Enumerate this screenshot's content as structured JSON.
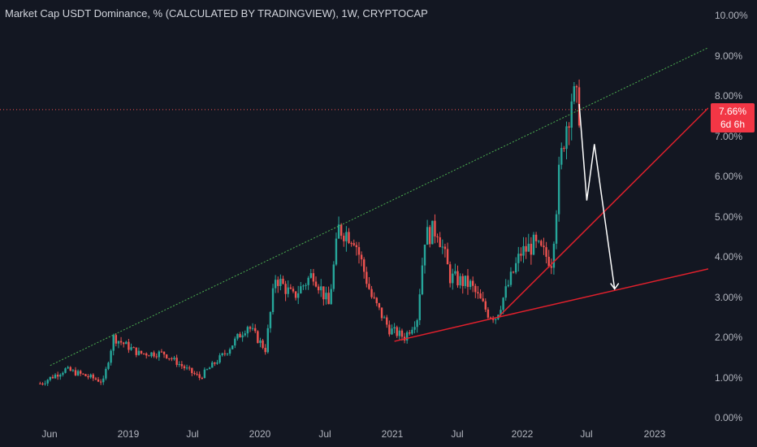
{
  "title": "Market Cap USDT Dominance, % (CALCULATED BY TRADINGVIEW), 1W, CRYPTOCAP",
  "last_value": "7.66%",
  "countdown": "6d 6h",
  "colors": {
    "up": "#26a69a",
    "down": "#ef5350",
    "background": "#131722",
    "upper_trendline": "#4caf50",
    "lower_trendline": "#e0202c",
    "projection": "#ffffff",
    "last_price_line": "#ef5350"
  },
  "chart_data": {
    "type": "candlestick",
    "title": "Market Cap USDT Dominance, % (CALCULATED BY TRADINGVIEW), 1W, CRYPTOCAP",
    "ylim": [
      0,
      10
    ],
    "y_unit": "%",
    "y_ticks": [
      "10.00%",
      "9.00%",
      "8.00%",
      "7.00%",
      "6.00%",
      "5.00%",
      "4.00%",
      "3.00%",
      "2.00%",
      "1.00%",
      "0.00%"
    ],
    "x_ticks": [
      "Jun",
      "2019",
      "Jul",
      "2020",
      "Jul",
      "2021",
      "Jul",
      "2022",
      "Jul",
      "2023"
    ],
    "x_range": [
      "2018-05-14",
      "2023-06-26"
    ],
    "grid": false,
    "last_value": 7.66,
    "key_points": [
      {
        "x": "2018-06-04",
        "y": 0.85
      },
      {
        "x": "2018-08-13",
        "y": 1.2
      },
      {
        "x": "2018-11-26",
        "y": 0.9
      },
      {
        "x": "2018-12-24",
        "y": 2.0
      },
      {
        "x": "2019-03-04",
        "y": 1.6
      },
      {
        "x": "2019-05-13",
        "y": 1.6
      },
      {
        "x": "2019-07-15",
        "y": 1.2
      },
      {
        "x": "2019-08-19",
        "y": 1.0
      },
      {
        "x": "2019-10-28",
        "y": 1.6
      },
      {
        "x": "2019-12-30",
        "y": 2.3
      },
      {
        "x": "2020-02-17",
        "y": 1.7
      },
      {
        "x": "2020-03-16",
        "y": 3.5
      },
      {
        "x": "2020-05-04",
        "y": 3.0
      },
      {
        "x": "2020-06-29",
        "y": 3.6
      },
      {
        "x": "2020-08-10",
        "y": 2.8
      },
      {
        "x": "2020-09-07",
        "y": 4.7
      },
      {
        "x": "2020-10-19",
        "y": 4.5
      },
      {
        "x": "2020-12-07",
        "y": 3.0
      },
      {
        "x": "2021-01-25",
        "y": 2.2
      },
      {
        "x": "2021-03-08",
        "y": 2.0
      },
      {
        "x": "2021-04-12",
        "y": 2.5
      },
      {
        "x": "2021-05-03",
        "y": 4.5
      },
      {
        "x": "2021-06-07",
        "y": 4.7
      },
      {
        "x": "2021-07-12",
        "y": 3.5
      },
      {
        "x": "2021-09-06",
        "y": 3.3
      },
      {
        "x": "2021-10-25",
        "y": 2.6
      },
      {
        "x": "2021-11-15",
        "y": 2.5
      },
      {
        "x": "2022-01-24",
        "y": 4.1
      },
      {
        "x": "2022-02-28",
        "y": 4.3
      },
      {
        "x": "2022-04-18",
        "y": 3.9
      },
      {
        "x": "2022-05-09",
        "y": 6.0
      },
      {
        "x": "2022-05-23",
        "y": 7.0
      },
      {
        "x": "2022-06-13",
        "y": 8.0
      },
      {
        "x": "2022-07-04",
        "y": 7.66
      }
    ],
    "annotations": {
      "upper_trendline": [
        {
          "x": "2018-07-02",
          "y": 1.3
        },
        {
          "x": "2023-06-26",
          "y": 9.2
        }
      ],
      "rising_trendline": [
        {
          "x": "2021-11-22",
          "y": 2.5
        },
        {
          "x": "2023-06-26",
          "y": 7.7
        }
      ],
      "lower_trendline": [
        {
          "x": "2021-02-08",
          "y": 1.9
        },
        {
          "x": "2021-11-22",
          "y": 2.5
        },
        {
          "x": "2023-06-26",
          "y": 3.7
        }
      ],
      "projection_path": [
        {
          "x": "2022-07-04",
          "y": 7.8
        },
        {
          "x": "2022-07-25",
          "y": 5.4
        },
        {
          "x": "2022-08-15",
          "y": 6.8
        },
        {
          "x": "2022-10-10",
          "y": 3.2
        }
      ]
    }
  }
}
